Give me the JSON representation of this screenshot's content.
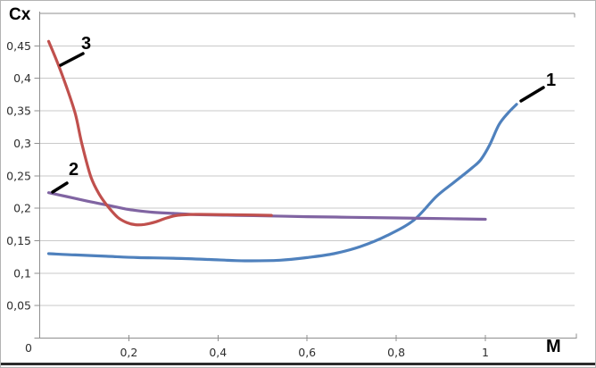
{
  "window": {
    "background_color": "#ffffff",
    "border_color": "#b3b3b3",
    "bottom_rule_color": "#2b2b2b"
  },
  "chart_data": {
    "type": "line",
    "title": "",
    "xlabel": "M",
    "ylabel": "Cx",
    "xlim": [
      0,
      1.2
    ],
    "ylim": [
      0,
      0.5
    ],
    "grid": "horizontal major gridlines, step 0.05; top gridline at 0.5 unlabeled",
    "legend": "none; curves annotated directly with numbers 1, 2, 3",
    "decimal_separator": ",",
    "x_axis": {
      "tick_values": [
        0.2,
        0.4,
        0.6,
        0.8,
        1
      ],
      "tick_labels": [
        "0,2",
        "0,4",
        "0,6",
        "0,8",
        "1"
      ]
    },
    "y_axis": {
      "tick_values": [
        0,
        0.05,
        0.1,
        0.15,
        0.2,
        0.25,
        0.3,
        0.35,
        0.4,
        0.45
      ],
      "tick_labels": [
        "0",
        "0,05",
        "0,1",
        "0,15",
        "0,2",
        "0,25",
        "0,3",
        "0,35",
        "0,4",
        "0,45"
      ],
      "unlabeled_top_gridline_value": 0.5
    },
    "series": [
      {
        "name": "1",
        "color": "#4f81bd",
        "points": [
          [
            0.02,
            0.13
          ],
          [
            0.08,
            0.128
          ],
          [
            0.15,
            0.126
          ],
          [
            0.22,
            0.124
          ],
          [
            0.3,
            0.123
          ],
          [
            0.38,
            0.121
          ],
          [
            0.46,
            0.119
          ],
          [
            0.54,
            0.12
          ],
          [
            0.6,
            0.124
          ],
          [
            0.66,
            0.13
          ],
          [
            0.72,
            0.141
          ],
          [
            0.78,
            0.158
          ],
          [
            0.84,
            0.182
          ],
          [
            0.89,
            0.218
          ],
          [
            0.93,
            0.24
          ],
          [
            0.97,
            0.262
          ],
          [
            0.99,
            0.275
          ],
          [
            1.01,
            0.298
          ],
          [
            1.03,
            0.328
          ],
          [
            1.05,
            0.346
          ],
          [
            1.07,
            0.36
          ]
        ]
      },
      {
        "name": "2",
        "color": "#8064a2",
        "points": [
          [
            0.02,
            0.224
          ],
          [
            0.06,
            0.218
          ],
          [
            0.1,
            0.212
          ],
          [
            0.15,
            0.205
          ],
          [
            0.2,
            0.198
          ],
          [
            0.25,
            0.194
          ],
          [
            0.3,
            0.192
          ],
          [
            0.36,
            0.19
          ],
          [
            0.44,
            0.189
          ],
          [
            0.52,
            0.188
          ],
          [
            0.6,
            0.187
          ],
          [
            0.7,
            0.186
          ],
          [
            0.8,
            0.185
          ],
          [
            0.9,
            0.184
          ],
          [
            1.0,
            0.183
          ]
        ]
      },
      {
        "name": "3",
        "color": "#c0504d",
        "points": [
          [
            0.02,
            0.457
          ],
          [
            0.04,
            0.424
          ],
          [
            0.06,
            0.387
          ],
          [
            0.08,
            0.345
          ],
          [
            0.095,
            0.298
          ],
          [
            0.115,
            0.248
          ],
          [
            0.135,
            0.22
          ],
          [
            0.155,
            0.201
          ],
          [
            0.175,
            0.186
          ],
          [
            0.195,
            0.178
          ],
          [
            0.215,
            0.1745
          ],
          [
            0.235,
            0.175
          ],
          [
            0.26,
            0.179
          ],
          [
            0.285,
            0.185
          ],
          [
            0.31,
            0.189
          ],
          [
            0.35,
            0.1905
          ],
          [
            0.42,
            0.19
          ],
          [
            0.48,
            0.1895
          ],
          [
            0.52,
            0.189
          ]
        ]
      }
    ],
    "annotations": [
      {
        "text": "1",
        "refers_to_series": "1",
        "near": "right end of curve 1, M≈1.08"
      },
      {
        "text": "2",
        "refers_to_series": "2",
        "near": "left start of curve 2, M≈0.03"
      },
      {
        "text": "3",
        "refers_to_series": "3",
        "near": "steep left part of curve 3, M≈0.07"
      }
    ]
  }
}
